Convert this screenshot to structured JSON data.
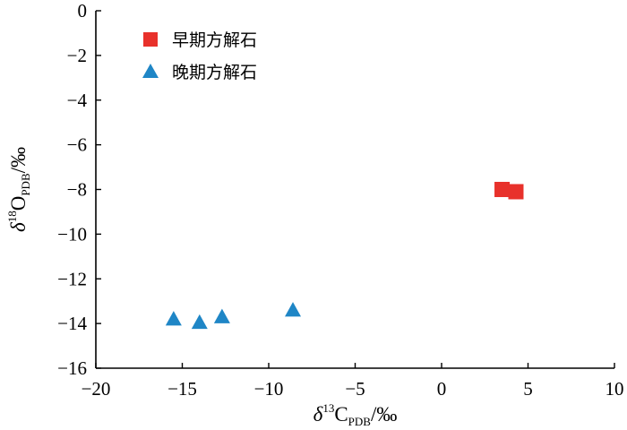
{
  "chart_data": {
    "type": "scatter",
    "xlim": [
      -20,
      10
    ],
    "ylim": [
      -16,
      0
    ],
    "x_ticks": [
      -20,
      -15,
      -10,
      -5,
      0,
      5,
      10
    ],
    "y_ticks": [
      0,
      -2,
      -4,
      -6,
      -8,
      -10,
      -12,
      -14,
      -16
    ],
    "x_tick_labels": [
      "−20",
      "−15",
      "−10",
      "−5",
      "0",
      "5",
      "10"
    ],
    "y_tick_labels": [
      "0",
      "−2",
      "−4",
      "−6",
      "−8",
      "−10",
      "−12",
      "−14",
      "−16"
    ],
    "xlabel": {
      "delta": "δ",
      "sup": "13",
      "main": "C",
      "sub": "PDB",
      "unit": "/‰"
    },
    "ylabel": {
      "delta": "δ",
      "sup": "18",
      "main": "O",
      "sub": "PDB",
      "unit": "/‰"
    },
    "grid": false,
    "legend_position": "top-left",
    "series": [
      {
        "name": "早期方解石",
        "marker": "square",
        "color": "#e8312b",
        "points": [
          [
            3.5,
            -8.0
          ],
          [
            4.3,
            -8.1
          ]
        ]
      },
      {
        "name": "晚期方解石",
        "marker": "triangle",
        "color": "#1f86c6",
        "points": [
          [
            -15.5,
            -13.8
          ],
          [
            -14.0,
            -13.95
          ],
          [
            -12.7,
            -13.7
          ],
          [
            -8.6,
            -13.4
          ]
        ]
      }
    ]
  }
}
